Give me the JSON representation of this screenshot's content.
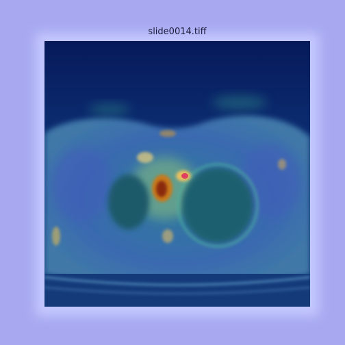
{
  "title": "slide0014.tiff"
}
